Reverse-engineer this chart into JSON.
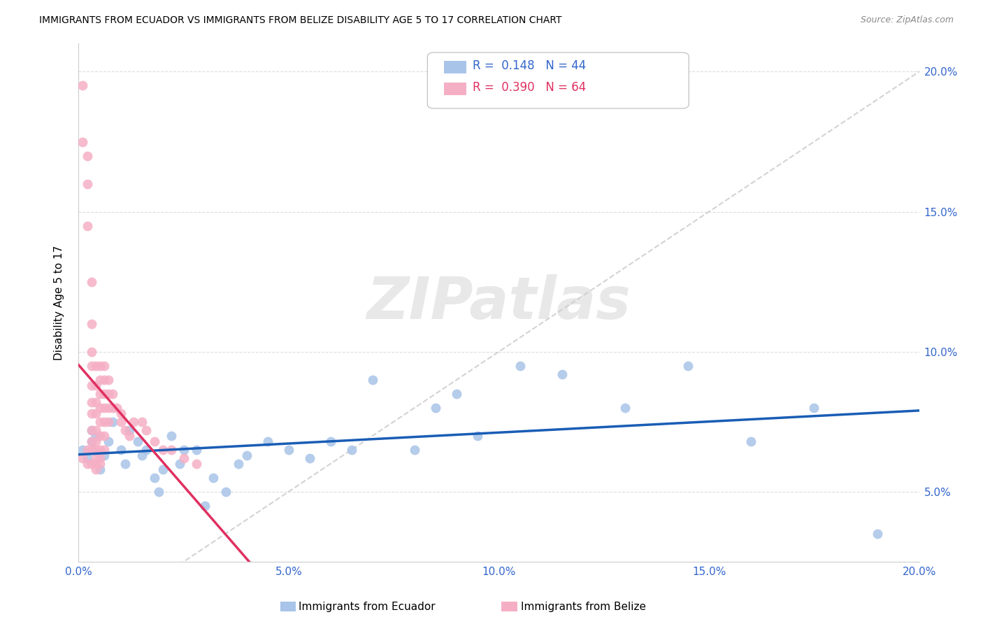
{
  "title": "IMMIGRANTS FROM ECUADOR VS IMMIGRANTS FROM BELIZE DISABILITY AGE 5 TO 17 CORRELATION CHART",
  "source": "Source: ZipAtlas.com",
  "ylabel_label": "Disability Age 5 to 17",
  "legend_label1": "Immigrants from Ecuador",
  "legend_label2": "Immigrants from Belize",
  "r1": 0.148,
  "n1": 44,
  "r2": 0.39,
  "n2": 64,
  "color_ecuador": "#a8c4e8",
  "color_belize": "#f5afc5",
  "line_color_ecuador": "#1a5db5",
  "line_color_belize": "#e03060",
  "diag_line_color": "#cccccc",
  "xlim": [
    0.0,
    0.2
  ],
  "ylim": [
    0.025,
    0.21
  ],
  "xticks": [
    0.0,
    0.05,
    0.1,
    0.15,
    0.2
  ],
  "yticks": [
    0.05,
    0.1,
    0.15,
    0.2
  ],
  "xtick_labels": [
    "0.0%",
    "5.0%",
    "10.0%",
    "15.0%",
    "20.0%"
  ],
  "ytick_labels": [
    "5.0%",
    "10.0%",
    "15.0%",
    "20.0%"
  ],
  "ecuador_x": [
    0.001,
    0.002,
    0.003,
    0.003,
    0.004,
    0.005,
    0.006,
    0.007,
    0.008,
    0.01,
    0.011,
    0.012,
    0.014,
    0.015,
    0.016,
    0.018,
    0.019,
    0.02,
    0.022,
    0.024,
    0.025,
    0.028,
    0.03,
    0.032,
    0.035,
    0.038,
    0.04,
    0.045,
    0.05,
    0.055,
    0.06,
    0.065,
    0.07,
    0.08,
    0.085,
    0.09,
    0.095,
    0.105,
    0.115,
    0.13,
    0.145,
    0.16,
    0.175,
    0.19
  ],
  "ecuador_y": [
    0.065,
    0.062,
    0.068,
    0.072,
    0.07,
    0.058,
    0.063,
    0.068,
    0.075,
    0.065,
    0.06,
    0.072,
    0.068,
    0.063,
    0.065,
    0.055,
    0.05,
    0.058,
    0.07,
    0.06,
    0.065,
    0.065,
    0.045,
    0.055,
    0.05,
    0.06,
    0.063,
    0.068,
    0.065,
    0.062,
    0.068,
    0.065,
    0.09,
    0.065,
    0.08,
    0.085,
    0.07,
    0.095,
    0.092,
    0.08,
    0.095,
    0.068,
    0.08,
    0.035
  ],
  "belize_x": [
    0.001,
    0.001,
    0.001,
    0.002,
    0.002,
    0.002,
    0.002,
    0.002,
    0.003,
    0.003,
    0.003,
    0.003,
    0.003,
    0.003,
    0.003,
    0.003,
    0.003,
    0.003,
    0.003,
    0.004,
    0.004,
    0.004,
    0.004,
    0.004,
    0.004,
    0.004,
    0.004,
    0.004,
    0.004,
    0.005,
    0.005,
    0.005,
    0.005,
    0.005,
    0.005,
    0.005,
    0.005,
    0.005,
    0.006,
    0.006,
    0.006,
    0.006,
    0.006,
    0.006,
    0.006,
    0.007,
    0.007,
    0.007,
    0.007,
    0.008,
    0.008,
    0.009,
    0.01,
    0.01,
    0.011,
    0.012,
    0.013,
    0.015,
    0.016,
    0.018,
    0.02,
    0.022,
    0.025,
    0.028
  ],
  "belize_y": [
    0.195,
    0.175,
    0.062,
    0.17,
    0.16,
    0.145,
    0.065,
    0.06,
    0.125,
    0.11,
    0.1,
    0.095,
    0.088,
    0.082,
    0.078,
    0.072,
    0.068,
    0.065,
    0.06,
    0.095,
    0.088,
    0.082,
    0.078,
    0.072,
    0.068,
    0.065,
    0.062,
    0.06,
    0.058,
    0.095,
    0.09,
    0.085,
    0.08,
    0.075,
    0.07,
    0.065,
    0.062,
    0.06,
    0.095,
    0.09,
    0.085,
    0.08,
    0.075,
    0.07,
    0.065,
    0.09,
    0.085,
    0.08,
    0.075,
    0.085,
    0.08,
    0.08,
    0.078,
    0.075,
    0.072,
    0.07,
    0.075,
    0.075,
    0.072,
    0.068,
    0.065,
    0.065,
    0.062,
    0.06
  ]
}
